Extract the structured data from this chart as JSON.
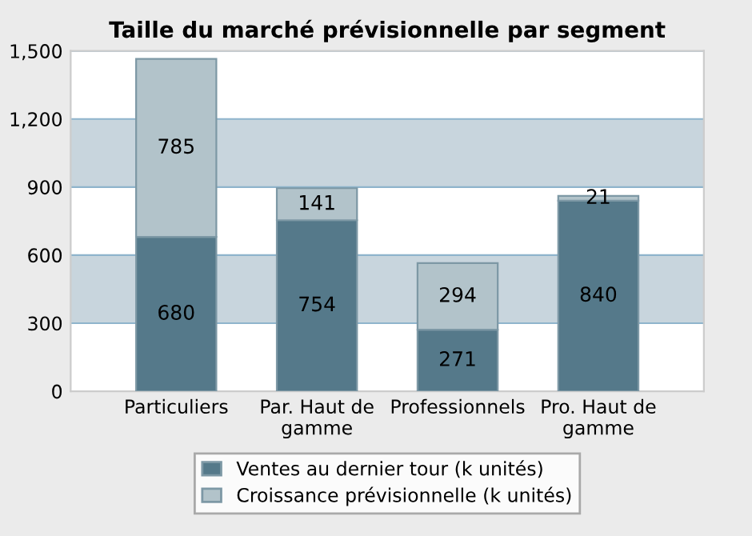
{
  "chart_data": {
    "type": "bar",
    "title": "Taille du marché prévisionnelle par segment",
    "stacked": true,
    "data_labels": true,
    "categories": [
      "Particuliers",
      "Par. Haut de gamme",
      "Professionnels",
      "Pro. Haut de gamme"
    ],
    "series": [
      {
        "name": "Ventes au dernier tour (k unités)",
        "color": "#55798a",
        "values": [
          680,
          754,
          271,
          840
        ]
      },
      {
        "name": "Croissance prévisionnelle (k unités)",
        "color": "#b2c3ca",
        "values": [
          785,
          141,
          294,
          21
        ]
      }
    ],
    "ylim": [
      0,
      1500
    ],
    "yticks": [
      0,
      300,
      600,
      900,
      {
        "value": 1200,
        "label": "1,200"
      },
      {
        "value": 1500,
        "label": "1,500"
      }
    ],
    "grid": "y",
    "bands": [
      {
        "axis": "y",
        "from": 300,
        "to": 600,
        "color": "#c8d5dd"
      },
      {
        "axis": "y",
        "from": 900,
        "to": 1200,
        "color": "#c8d5dd"
      }
    ],
    "legend": "bottom"
  }
}
